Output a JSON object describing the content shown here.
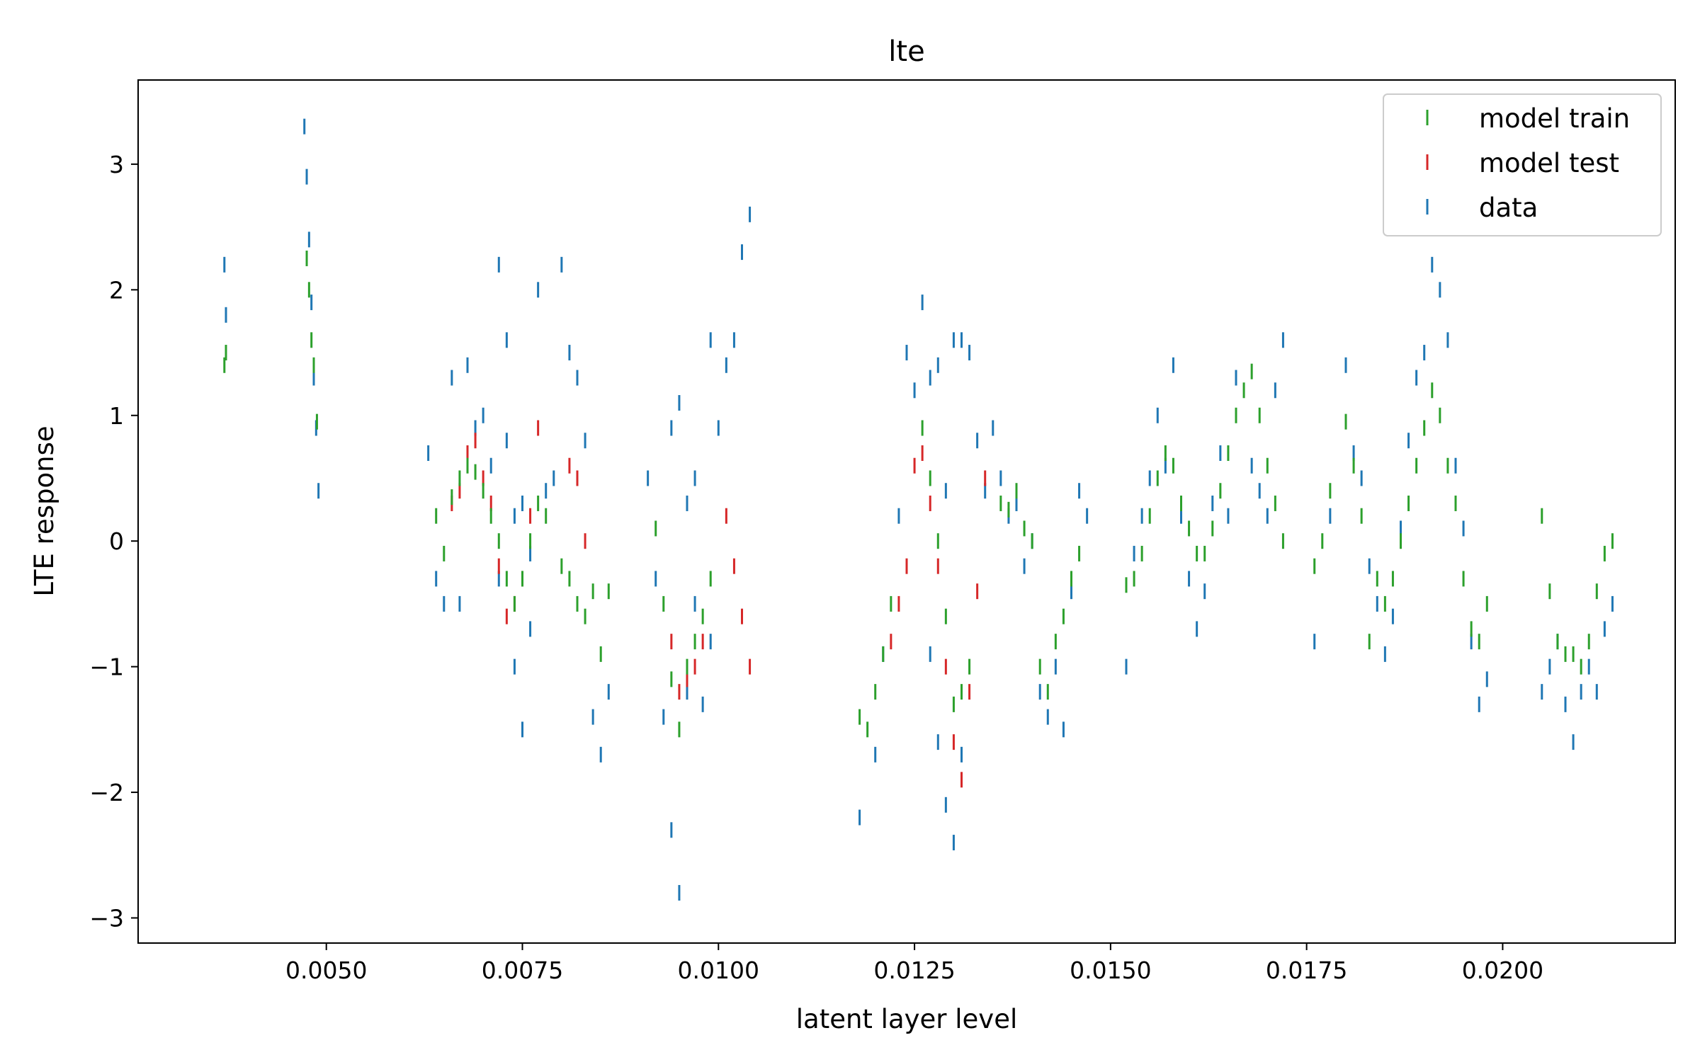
{
  "chart_data": {
    "type": "scatter",
    "title": "lte",
    "xlabel": "latent layer level",
    "ylabel": "LTE response",
    "xlim": [
      0.0026,
      0.0222
    ],
    "ylim": [
      -3.2,
      3.67
    ],
    "x_ticks": [
      0.005,
      0.0075,
      0.01,
      0.0125,
      0.015,
      0.0175,
      0.02
    ],
    "x_tick_labels": [
      "0.0050",
      "0.0075",
      "0.0100",
      "0.0125",
      "0.0150",
      "0.0175",
      "0.0200"
    ],
    "y_ticks": [
      -3,
      -2,
      -1,
      0,
      1,
      2,
      3
    ],
    "y_tick_labels": [
      "−3",
      "−2",
      "−1",
      "0",
      "1",
      "2",
      "3"
    ],
    "grid": false,
    "legend_position": "top-right",
    "marker": "vertical-line",
    "series": [
      {
        "name": "model train",
        "color": "#2ca02c",
        "points": [
          [
            0.0037,
            1.4
          ],
          [
            0.00372,
            1.5
          ],
          [
            0.00475,
            2.25
          ],
          [
            0.00478,
            2.0
          ],
          [
            0.00481,
            1.6
          ],
          [
            0.00484,
            1.4
          ],
          [
            0.00488,
            0.95
          ],
          [
            0.0064,
            0.2
          ],
          [
            0.0065,
            -0.1
          ],
          [
            0.0066,
            0.35
          ],
          [
            0.0067,
            0.5
          ],
          [
            0.0068,
            0.6
          ],
          [
            0.0069,
            0.55
          ],
          [
            0.007,
            0.4
          ],
          [
            0.0071,
            0.2
          ],
          [
            0.0072,
            0.0
          ],
          [
            0.0073,
            -0.3
          ],
          [
            0.0074,
            -0.5
          ],
          [
            0.0075,
            -0.3
          ],
          [
            0.0076,
            0.0
          ],
          [
            0.0077,
            0.3
          ],
          [
            0.0078,
            0.2
          ],
          [
            0.008,
            -0.2
          ],
          [
            0.0081,
            -0.3
          ],
          [
            0.0082,
            -0.5
          ],
          [
            0.0083,
            -0.6
          ],
          [
            0.0084,
            -0.4
          ],
          [
            0.0085,
            -0.9
          ],
          [
            0.0086,
            -0.4
          ],
          [
            0.0092,
            0.1
          ],
          [
            0.0093,
            -0.5
          ],
          [
            0.0094,
            -1.1
          ],
          [
            0.0095,
            -1.5
          ],
          [
            0.0096,
            -1.0
          ],
          [
            0.0097,
            -0.8
          ],
          [
            0.0098,
            -0.6
          ],
          [
            0.0099,
            -0.3
          ],
          [
            0.0118,
            -1.4
          ],
          [
            0.0119,
            -1.5
          ],
          [
            0.012,
            -1.2
          ],
          [
            0.0121,
            -0.9
          ],
          [
            0.0122,
            -0.5
          ],
          [
            0.0126,
            0.9
          ],
          [
            0.0127,
            0.5
          ],
          [
            0.0128,
            0.0
          ],
          [
            0.0129,
            -0.6
          ],
          [
            0.013,
            -1.3
          ],
          [
            0.0131,
            -1.2
          ],
          [
            0.0132,
            -1.0
          ],
          [
            0.0136,
            0.3
          ],
          [
            0.0137,
            0.25
          ],
          [
            0.0138,
            0.4
          ],
          [
            0.0139,
            0.1
          ],
          [
            0.014,
            0.0
          ],
          [
            0.0141,
            -1.0
          ],
          [
            0.0142,
            -1.2
          ],
          [
            0.0143,
            -0.8
          ],
          [
            0.0144,
            -0.6
          ],
          [
            0.0145,
            -0.3
          ],
          [
            0.0146,
            -0.1
          ],
          [
            0.0152,
            -0.35
          ],
          [
            0.0153,
            -0.3
          ],
          [
            0.0154,
            -0.1
          ],
          [
            0.0155,
            0.2
          ],
          [
            0.0156,
            0.5
          ],
          [
            0.0157,
            0.7
          ],
          [
            0.0158,
            0.6
          ],
          [
            0.0159,
            0.3
          ],
          [
            0.016,
            0.1
          ],
          [
            0.0161,
            -0.1
          ],
          [
            0.0162,
            -0.1
          ],
          [
            0.0163,
            0.1
          ],
          [
            0.0164,
            0.4
          ],
          [
            0.0165,
            0.7
          ],
          [
            0.0166,
            1.0
          ],
          [
            0.0167,
            1.2
          ],
          [
            0.0168,
            1.35
          ],
          [
            0.0169,
            1.0
          ],
          [
            0.017,
            0.6
          ],
          [
            0.0171,
            0.3
          ],
          [
            0.0172,
            0.0
          ],
          [
            0.0176,
            -0.2
          ],
          [
            0.0177,
            0.0
          ],
          [
            0.0178,
            0.4
          ],
          [
            0.018,
            0.95
          ],
          [
            0.0181,
            0.6
          ],
          [
            0.0182,
            0.2
          ],
          [
            0.0183,
            -0.8
          ],
          [
            0.0184,
            -0.3
          ],
          [
            0.0185,
            -0.5
          ],
          [
            0.0186,
            -0.3
          ],
          [
            0.0187,
            0.0
          ],
          [
            0.0188,
            0.3
          ],
          [
            0.0189,
            0.6
          ],
          [
            0.019,
            0.9
          ],
          [
            0.0191,
            1.2
          ],
          [
            0.0192,
            1.0
          ],
          [
            0.0193,
            0.6
          ],
          [
            0.0194,
            0.3
          ],
          [
            0.0195,
            -0.3
          ],
          [
            0.0196,
            -0.7
          ],
          [
            0.0197,
            -0.8
          ],
          [
            0.0198,
            -0.5
          ],
          [
            0.0205,
            0.2
          ],
          [
            0.0206,
            -0.4
          ],
          [
            0.0207,
            -0.8
          ],
          [
            0.0208,
            -0.9
          ],
          [
            0.0209,
            -0.9
          ],
          [
            0.021,
            -1.0
          ],
          [
            0.0211,
            -0.8
          ],
          [
            0.0212,
            -0.4
          ],
          [
            0.0213,
            -0.1
          ],
          [
            0.0214,
            0.0
          ]
        ]
      },
      {
        "name": "model test",
        "color": "#d62728",
        "points": [
          [
            0.0066,
            0.3
          ],
          [
            0.0067,
            0.4
          ],
          [
            0.0068,
            0.7
          ],
          [
            0.0069,
            0.8
          ],
          [
            0.007,
            0.5
          ],
          [
            0.0071,
            0.3
          ],
          [
            0.0072,
            -0.2
          ],
          [
            0.0073,
            -0.6
          ],
          [
            0.0074,
            -0.5
          ],
          [
            0.0075,
            -0.3
          ],
          [
            0.0076,
            0.2
          ],
          [
            0.0077,
            0.9
          ],
          [
            0.0081,
            0.6
          ],
          [
            0.0082,
            0.5
          ],
          [
            0.0083,
            0.0
          ],
          [
            0.0094,
            -0.8
          ],
          [
            0.0095,
            -1.2
          ],
          [
            0.0096,
            -1.1
          ],
          [
            0.0097,
            -1.0
          ],
          [
            0.0098,
            -0.8
          ],
          [
            0.0101,
            0.2
          ],
          [
            0.0102,
            -0.2
          ],
          [
            0.0103,
            -0.6
          ],
          [
            0.0104,
            -1.0
          ],
          [
            0.0122,
            -0.8
          ],
          [
            0.0123,
            -0.5
          ],
          [
            0.0124,
            -0.2
          ],
          [
            0.0125,
            0.6
          ],
          [
            0.0126,
            0.7
          ],
          [
            0.0127,
            0.3
          ],
          [
            0.0128,
            -0.2
          ],
          [
            0.0129,
            -1.0
          ],
          [
            0.013,
            -1.6
          ],
          [
            0.0131,
            -1.9
          ],
          [
            0.0132,
            -1.2
          ],
          [
            0.0133,
            -0.4
          ],
          [
            0.0134,
            0.5
          ]
        ]
      },
      {
        "name": "data",
        "color": "#1f77b4",
        "points": [
          [
            0.0037,
            2.2
          ],
          [
            0.00372,
            1.8
          ],
          [
            0.00472,
            3.3
          ],
          [
            0.00475,
            2.9
          ],
          [
            0.00478,
            2.4
          ],
          [
            0.00481,
            1.9
          ],
          [
            0.00484,
            1.3
          ],
          [
            0.00487,
            0.9
          ],
          [
            0.0049,
            0.4
          ],
          [
            0.0063,
            0.7
          ],
          [
            0.0064,
            -0.3
          ],
          [
            0.0065,
            -0.5
          ],
          [
            0.0066,
            1.3
          ],
          [
            0.0067,
            -0.5
          ],
          [
            0.0068,
            1.4
          ],
          [
            0.0069,
            0.9
          ],
          [
            0.007,
            1.0
          ],
          [
            0.0071,
            0.6
          ],
          [
            0.0072,
            -0.3
          ],
          [
            0.0073,
            0.8
          ],
          [
            0.0074,
            -1.0
          ],
          [
            0.0075,
            -1.5
          ],
          [
            0.0076,
            -0.7
          ],
          [
            0.0077,
            2.0
          ],
          [
            0.0078,
            0.4
          ],
          [
            0.0079,
            0.5
          ],
          [
            0.0072,
            2.2
          ],
          [
            0.0073,
            1.6
          ],
          [
            0.0074,
            0.2
          ],
          [
            0.0075,
            0.3
          ],
          [
            0.0076,
            -0.1
          ],
          [
            0.008,
            2.2
          ],
          [
            0.0081,
            1.5
          ],
          [
            0.0082,
            1.3
          ],
          [
            0.0083,
            0.8
          ],
          [
            0.0084,
            -1.4
          ],
          [
            0.0085,
            -1.7
          ],
          [
            0.0086,
            -1.2
          ],
          [
            0.0091,
            0.5
          ],
          [
            0.0092,
            -0.3
          ],
          [
            0.0093,
            -1.4
          ],
          [
            0.0094,
            -2.3
          ],
          [
            0.0095,
            -2.8
          ],
          [
            0.0096,
            -1.2
          ],
          [
            0.0097,
            -0.5
          ],
          [
            0.0098,
            -1.3
          ],
          [
            0.0099,
            -0.8
          ],
          [
            0.0094,
            0.9
          ],
          [
            0.0095,
            1.1
          ],
          [
            0.0096,
            0.3
          ],
          [
            0.0097,
            0.5
          ],
          [
            0.0099,
            1.6
          ],
          [
            0.01,
            0.9
          ],
          [
            0.0101,
            1.4
          ],
          [
            0.0102,
            1.6
          ],
          [
            0.0103,
            2.3
          ],
          [
            0.0104,
            2.6
          ],
          [
            0.0118,
            -2.2
          ],
          [
            0.012,
            -1.7
          ],
          [
            0.0121,
            -0.9
          ],
          [
            0.0123,
            0.2
          ],
          [
            0.0124,
            1.5
          ],
          [
            0.0125,
            1.2
          ],
          [
            0.0126,
            1.9
          ],
          [
            0.0127,
            1.3
          ],
          [
            0.0128,
            1.4
          ],
          [
            0.0129,
            0.4
          ],
          [
            0.013,
            1.6
          ],
          [
            0.0131,
            1.6
          ],
          [
            0.0132,
            1.5
          ],
          [
            0.0133,
            0.8
          ],
          [
            0.0134,
            0.4
          ],
          [
            0.0135,
            0.9
          ],
          [
            0.0127,
            -0.9
          ],
          [
            0.0128,
            -1.6
          ],
          [
            0.0129,
            -2.1
          ],
          [
            0.013,
            -2.4
          ],
          [
            0.0131,
            -1.7
          ],
          [
            0.0136,
            0.5
          ],
          [
            0.0137,
            0.2
          ],
          [
            0.0138,
            0.3
          ],
          [
            0.0139,
            -0.2
          ],
          [
            0.014,
            0.0
          ],
          [
            0.0141,
            -1.2
          ],
          [
            0.0142,
            -1.4
          ],
          [
            0.0143,
            -1.0
          ],
          [
            0.0144,
            -1.5
          ],
          [
            0.0145,
            -0.4
          ],
          [
            0.0146,
            0.4
          ],
          [
            0.0147,
            0.2
          ],
          [
            0.0152,
            -1.0
          ],
          [
            0.0153,
            -0.1
          ],
          [
            0.0154,
            0.2
          ],
          [
            0.0155,
            0.5
          ],
          [
            0.0156,
            1.0
          ],
          [
            0.0157,
            0.6
          ],
          [
            0.0158,
            1.4
          ],
          [
            0.0159,
            0.2
          ],
          [
            0.016,
            -0.3
          ],
          [
            0.0161,
            -0.7
          ],
          [
            0.0162,
            -0.4
          ],
          [
            0.0163,
            0.3
          ],
          [
            0.0164,
            0.7
          ],
          [
            0.0165,
            0.2
          ],
          [
            0.0166,
            1.3
          ],
          [
            0.0168,
            0.6
          ],
          [
            0.0169,
            0.4
          ],
          [
            0.017,
            0.2
          ],
          [
            0.0171,
            1.2
          ],
          [
            0.0172,
            1.6
          ],
          [
            0.0176,
            -0.8
          ],
          [
            0.0178,
            0.2
          ],
          [
            0.018,
            1.4
          ],
          [
            0.0181,
            0.7
          ],
          [
            0.0182,
            0.5
          ],
          [
            0.0183,
            -0.2
          ],
          [
            0.0184,
            -0.5
          ],
          [
            0.0185,
            -0.9
          ],
          [
            0.0186,
            -0.6
          ],
          [
            0.0187,
            0.1
          ],
          [
            0.0188,
            0.8
          ],
          [
            0.0189,
            1.3
          ],
          [
            0.019,
            1.5
          ],
          [
            0.0191,
            2.2
          ],
          [
            0.0192,
            2.0
          ],
          [
            0.0193,
            1.6
          ],
          [
            0.0194,
            0.6
          ],
          [
            0.0195,
            0.1
          ],
          [
            0.0196,
            -0.8
          ],
          [
            0.0197,
            -1.3
          ],
          [
            0.0198,
            -1.1
          ],
          [
            0.0205,
            -1.2
          ],
          [
            0.0206,
            -1.0
          ],
          [
            0.0207,
            -0.8
          ],
          [
            0.0208,
            -1.3
          ],
          [
            0.0209,
            -1.6
          ],
          [
            0.021,
            -1.2
          ],
          [
            0.0211,
            -1.0
          ],
          [
            0.0212,
            -1.2
          ],
          [
            0.0213,
            -0.7
          ],
          [
            0.0214,
            -0.5
          ]
        ]
      }
    ]
  }
}
